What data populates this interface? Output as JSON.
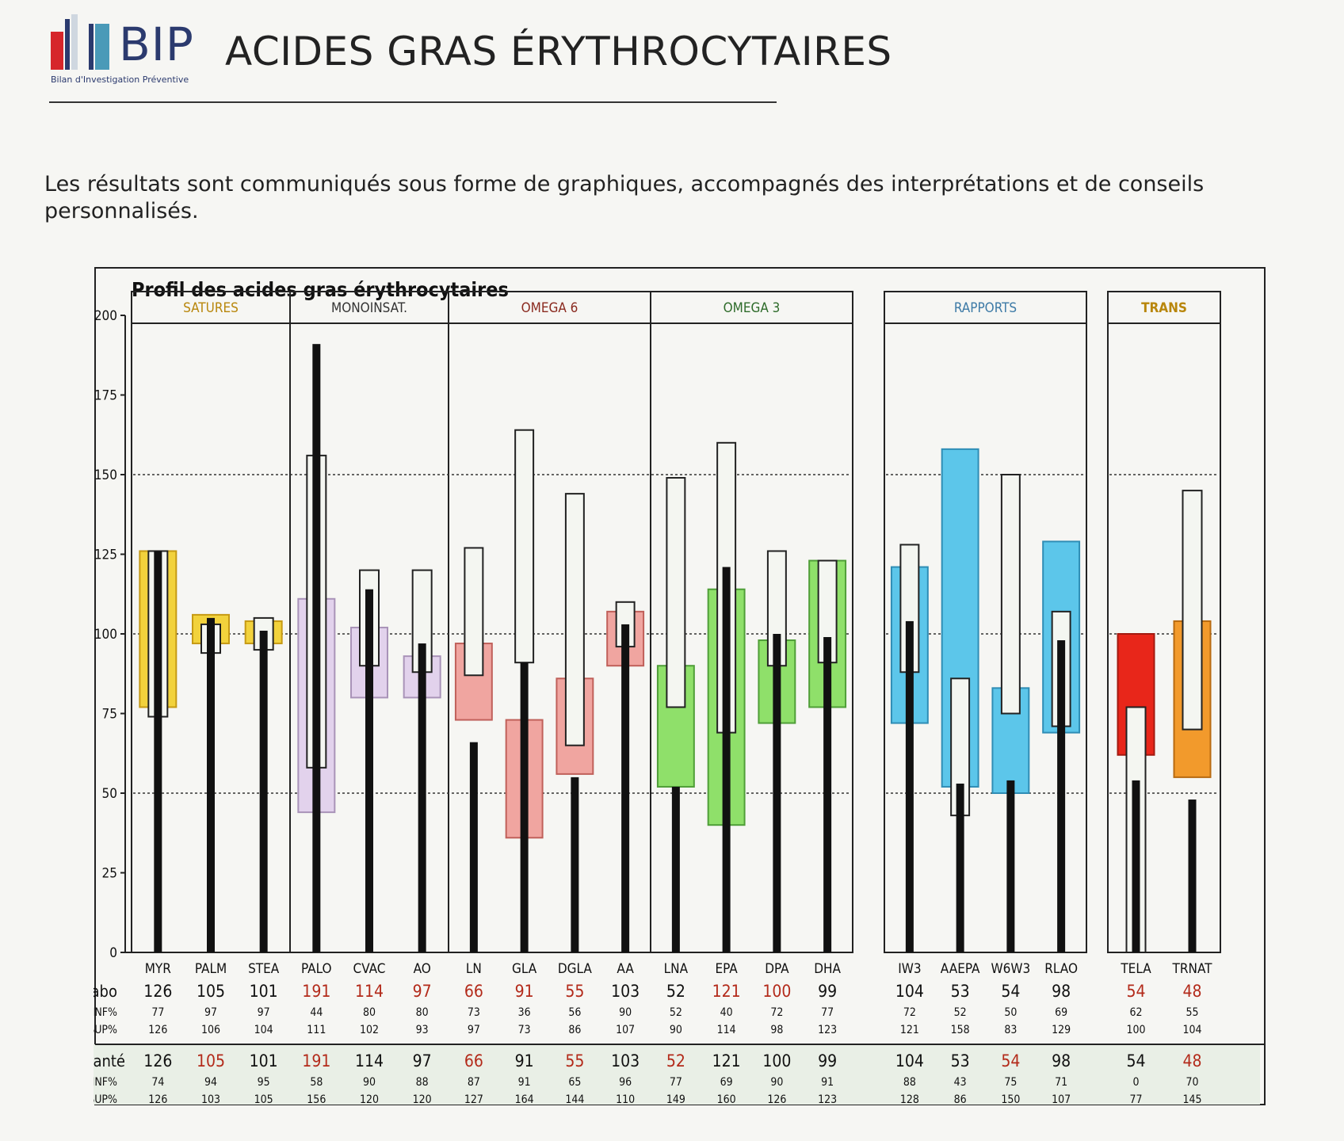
{
  "header": {
    "logo_text": "BIP",
    "logo_subtitle": "Bilan d'Investigation Préventive",
    "title": "ACIDES GRAS ÉRYTHROCYTAIRES"
  },
  "intro": "Les résultats sont communiqués sous forme de graphiques, accompagnés des interprétations et de conseils personnalisés.",
  "colors": {
    "text_red": "#b32a1a",
    "bar": "#111111",
    "frame": "#222222"
  },
  "chart_data": {
    "type": "bar",
    "title": "Profil des acides gras érythrocytaires",
    "ylim": [
      0,
      200
    ],
    "yticks": [
      "0",
      "25",
      "50",
      "75",
      "100",
      "125",
      "150",
      "175",
      "200"
    ],
    "grid_dotted_at": [
      50,
      100,
      150
    ],
    "row_labels": {
      "labo": "Labo",
      "inf": "INF%",
      "sup": "SUP%",
      "sante": "Santé"
    },
    "groups": [
      {
        "name": "SATURES",
        "name_color": "#b8860b",
        "fill": "#f2d23c",
        "edge": "#c69a14",
        "items": [
          {
            "label": "MYR",
            "labo": "126",
            "labo_inf": "77",
            "labo_sup": "126",
            "sante": "126",
            "sante_inf": "74",
            "sante_sup": "126",
            "labo_red": false,
            "sante_red": false
          },
          {
            "label": "PALM",
            "labo": "105",
            "labo_inf": "97",
            "labo_sup": "106",
            "sante": "105",
            "sante_inf": "94",
            "sante_sup": "103",
            "labo_red": false,
            "sante_red": true
          },
          {
            "label": "STEA",
            "labo": "101",
            "labo_inf": "97",
            "labo_sup": "104",
            "sante": "101",
            "sante_inf": "95",
            "sante_sup": "105",
            "labo_red": false,
            "sante_red": false
          }
        ]
      },
      {
        "name": "MONOINSAT.",
        "name_color": "#333333",
        "fill": "#e2d2ec",
        "edge": "#a993b8",
        "items": [
          {
            "label": "PALO",
            "labo": "191",
            "labo_inf": "44",
            "labo_sup": "111",
            "sante": "191",
            "sante_inf": "58",
            "sante_sup": "156",
            "labo_red": true,
            "sante_red": true
          },
          {
            "label": "CVAC",
            "labo": "114",
            "labo_inf": "80",
            "labo_sup": "102",
            "sante": "114",
            "sante_inf": "90",
            "sante_sup": "120",
            "labo_red": true,
            "sante_red": false
          },
          {
            "label": "AO",
            "labo": "97",
            "labo_inf": "80",
            "labo_sup": "93",
            "sante": "97",
            "sante_inf": "88",
            "sante_sup": "120",
            "labo_red": true,
            "sante_red": false
          }
        ]
      },
      {
        "name": "OMEGA 6",
        "name_color": "#8a2a1f",
        "fill": "#f0a5a0",
        "edge": "#c0605a",
        "items": [
          {
            "label": "LN",
            "labo": "66",
            "labo_inf": "73",
            "labo_sup": "97",
            "sante": "66",
            "sante_inf": "87",
            "sante_sup": "127",
            "labo_red": true,
            "sante_red": true
          },
          {
            "label": "GLA",
            "labo": "91",
            "labo_inf": "36",
            "labo_sup": "73",
            "sante": "91",
            "sante_inf": "91",
            "sante_sup": "164",
            "labo_red": true,
            "sante_red": false
          },
          {
            "label": "DGLA",
            "labo": "55",
            "labo_inf": "56",
            "labo_sup": "86",
            "sante": "55",
            "sante_inf": "65",
            "sante_sup": "144",
            "labo_red": true,
            "sante_red": true
          },
          {
            "label": "AA",
            "labo": "103",
            "labo_inf": "90",
            "labo_sup": "107",
            "sante": "103",
            "sante_inf": "96",
            "sante_sup": "110",
            "labo_red": false,
            "sante_red": false
          }
        ]
      },
      {
        "name": "OMEGA 3",
        "name_color": "#2e6b2a",
        "fill": "#8fe06a",
        "edge": "#4f9e38",
        "items": [
          {
            "label": "LNA",
            "labo": "52",
            "labo_inf": "52",
            "labo_sup": "90",
            "sante": "52",
            "sante_inf": "77",
            "sante_sup": "149",
            "labo_red": false,
            "sante_red": true
          },
          {
            "label": "EPA",
            "labo": "121",
            "labo_inf": "40",
            "labo_sup": "114",
            "sante": "121",
            "sante_inf": "69",
            "sante_sup": "160",
            "labo_red": true,
            "sante_red": false
          },
          {
            "label": "DPA",
            "labo": "100",
            "labo_inf": "72",
            "labo_sup": "98",
            "sante": "100",
            "sante_inf": "90",
            "sante_sup": "126",
            "labo_red": true,
            "sante_red": false
          },
          {
            "label": "DHA",
            "labo": "99",
            "labo_inf": "77",
            "labo_sup": "123",
            "sante": "99",
            "sante_inf": "91",
            "sante_sup": "123",
            "labo_red": false,
            "sante_red": false
          }
        ]
      },
      {
        "name": "RAPPORTS",
        "name_color": "#3d7aa6",
        "fill": "#5cc6ea",
        "edge": "#2f8db5",
        "items": [
          {
            "label": "IW3",
            "labo": "104",
            "labo_inf": "72",
            "labo_sup": "121",
            "sante": "104",
            "sante_inf": "88",
            "sante_sup": "128",
            "labo_red": false,
            "sante_red": false
          },
          {
            "label": "AAEPA",
            "labo": "53",
            "labo_inf": "52",
            "labo_sup": "158",
            "sante": "53",
            "sante_inf": "43",
            "sante_sup": "86",
            "labo_red": false,
            "sante_red": false
          },
          {
            "label": "W6W3",
            "labo": "54",
            "labo_inf": "50",
            "labo_sup": "83",
            "sante": "54",
            "sante_inf": "75",
            "sante_sup": "150",
            "labo_red": false,
            "sante_red": true
          },
          {
            "label": "RLAO",
            "labo": "98",
            "labo_inf": "69",
            "labo_sup": "129",
            "sante": "98",
            "sante_inf": "71",
            "sante_sup": "107",
            "labo_red": false,
            "sante_red": false
          }
        ]
      },
      {
        "name": "TRANS",
        "name_color": "#b8860b",
        "fill": "",
        "edge": "",
        "items": [
          {
            "label": "TELA",
            "labo": "54",
            "labo_inf": "62",
            "labo_sup": "100",
            "sante": "54",
            "sante_inf": "0",
            "sante_sup": "77",
            "labo_red": true,
            "sante_red": false,
            "fill": "#e8261a",
            "edge": "#a31a10"
          },
          {
            "label": "TRNAT",
            "labo": "48",
            "labo_inf": "55",
            "labo_sup": "104",
            "sante": "48",
            "sante_inf": "70",
            "sante_sup": "145",
            "labo_red": true,
            "sante_red": true,
            "fill": "#f29a2c",
            "edge": "#b86a10"
          }
        ]
      }
    ]
  }
}
